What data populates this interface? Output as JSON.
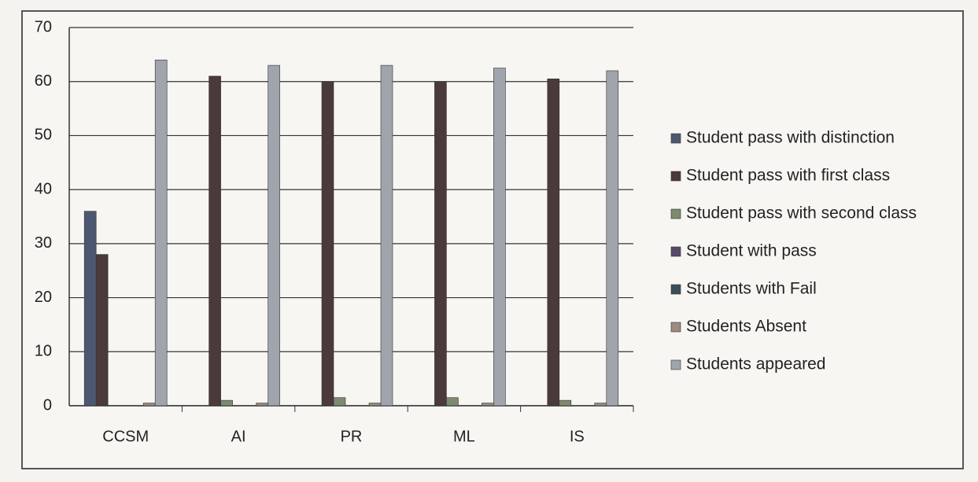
{
  "chart_data": {
    "type": "bar",
    "categories": [
      "CCSM",
      "AI",
      "PR",
      "ML",
      "IS"
    ],
    "series": [
      {
        "name": "Student pass with distinction",
        "color": "#4d5870",
        "values": [
          36,
          0,
          0,
          0,
          0
        ]
      },
      {
        "name": "Student pass with first class",
        "color": "#4a3a3a",
        "values": [
          28,
          61,
          60,
          60,
          60.5
        ]
      },
      {
        "name": "Student pass with second class",
        "color": "#7d8a70",
        "values": [
          0,
          1,
          1.5,
          1.5,
          1
        ]
      },
      {
        "name": "Student with pass",
        "color": "#564a66",
        "values": [
          0,
          0,
          0,
          0,
          0
        ]
      },
      {
        "name": "Students with Fail",
        "color": "#3a4e5a",
        "values": [
          0,
          0,
          0,
          0,
          0
        ]
      },
      {
        "name": "Students Absent",
        "color": "#9a8a80",
        "values": [
          0.5,
          0.5,
          0.5,
          0.5,
          0.5
        ]
      },
      {
        "name": "Students appeared",
        "color": "#a0a4ac",
        "values": [
          64,
          63,
          63,
          62.5,
          62
        ]
      }
    ],
    "ylim": [
      0,
      70
    ],
    "yticks": [
      0,
      10,
      20,
      30,
      40,
      50,
      60,
      70
    ],
    "grid": true,
    "legend": "right"
  }
}
